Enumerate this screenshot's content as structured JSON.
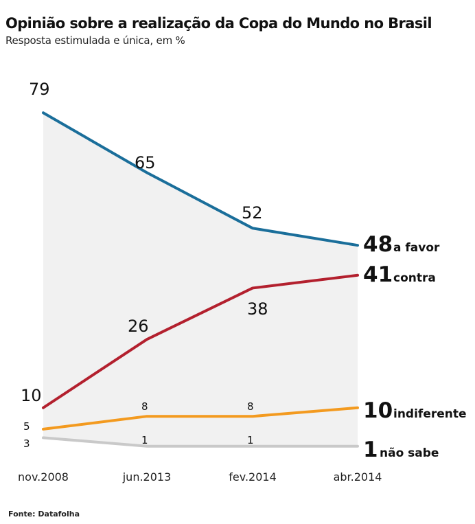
{
  "header": {
    "title": "Opinião sobre a realização da Copa do Mundo no Brasil",
    "subtitle": "Resposta estimulada e única, em %"
  },
  "footer": {
    "source": "Fonte: Datafolha"
  },
  "chart_data": {
    "type": "line",
    "x": [
      "nov.2008",
      "jun.2013",
      "fev.2014",
      "abr.2014"
    ],
    "ylim": [
      0,
      80
    ],
    "grid": false,
    "shaded_area_between": [
      "a favor",
      "não sabe"
    ],
    "series": [
      {
        "name": "a favor",
        "values": [
          79,
          65,
          52,
          48
        ],
        "color": "#1a6e9a"
      },
      {
        "name": "contra",
        "values": [
          10,
          26,
          38,
          41
        ],
        "color": "#b3202e"
      },
      {
        "name": "indiferente",
        "values": [
          5,
          8,
          8,
          10
        ],
        "color": "#f39a1f"
      },
      {
        "name": "não sabe",
        "values": [
          3,
          1,
          1,
          1
        ],
        "color": "#c9c9c9"
      }
    ]
  }
}
